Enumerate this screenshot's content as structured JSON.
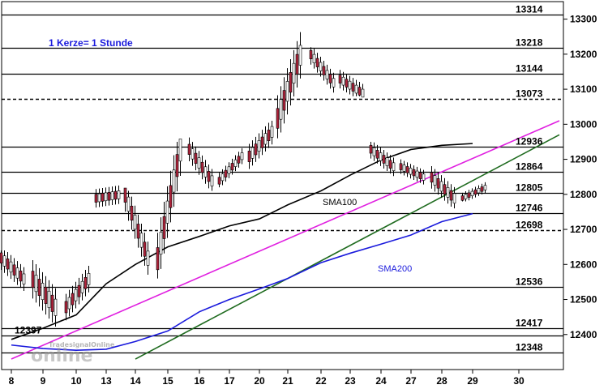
{
  "chart_data": {
    "type": "candlestick",
    "annotation": "1 Kerze= 1 Stunde",
    "x_ticks": [
      "8",
      "9",
      "10",
      "13",
      "14",
      "15",
      "16",
      "17",
      "20",
      "21",
      "22",
      "23",
      "24",
      "27",
      "28",
      "29",
      "30"
    ],
    "y_ticks": [
      12400,
      12500,
      12600,
      12700,
      12800,
      12900,
      13000,
      13100,
      13200,
      13300
    ],
    "ylim": [
      12300,
      13350
    ],
    "levels": [
      {
        "value": 13314,
        "label": "13314",
        "style": "solid"
      },
      {
        "value": 13218,
        "label": "13218",
        "style": "solid"
      },
      {
        "value": 13144,
        "label": "13144",
        "style": "solid"
      },
      {
        "value": 13073,
        "label": "13073",
        "style": "dashed"
      },
      {
        "value": 12936,
        "label": "12936",
        "style": "solid"
      },
      {
        "value": 12864,
        "label": "12864",
        "style": "solid"
      },
      {
        "value": 12805,
        "label": "12805",
        "style": "solid"
      },
      {
        "value": 12746,
        "label": "12746",
        "style": "solid"
      },
      {
        "value": 12698,
        "label": "12698",
        "style": "dashed"
      },
      {
        "value": 12536,
        "label": "12536",
        "style": "solid"
      },
      {
        "value": 12417,
        "label": "12417",
        "style": "solid"
      },
      {
        "value": 12397,
        "label": "12397",
        "style": "solid"
      },
      {
        "value": 12348,
        "label": "12348",
        "style": "solid"
      }
    ],
    "series": [
      {
        "name": "SMA100",
        "color": "#000000",
        "points": [
          [
            "8",
            12386
          ],
          [
            "9",
            12418
          ],
          [
            "10",
            12456
          ],
          [
            "13",
            12545
          ],
          [
            "14",
            12600
          ],
          [
            "15",
            12650
          ],
          [
            "16",
            12680
          ],
          [
            "17",
            12710
          ],
          [
            "20",
            12730
          ],
          [
            "21",
            12770
          ],
          [
            "22",
            12810
          ],
          [
            "23",
            12855
          ],
          [
            "24",
            12898
          ],
          [
            "27",
            12928
          ],
          [
            "28",
            12940
          ],
          [
            "29",
            12945
          ]
        ]
      },
      {
        "name": "SMA200",
        "color": "#1a1adc",
        "points": [
          [
            "8",
            12370
          ],
          [
            "9",
            12360
          ],
          [
            "10",
            12355
          ],
          [
            "13",
            12358
          ],
          [
            "14",
            12380
          ],
          [
            "15",
            12410
          ],
          [
            "16",
            12465
          ],
          [
            "17",
            12500
          ],
          [
            "20",
            12530
          ],
          [
            "21",
            12560
          ],
          [
            "22",
            12605
          ],
          [
            "23",
            12632
          ],
          [
            "24",
            12658
          ],
          [
            "27",
            12684
          ],
          [
            "28",
            12722
          ],
          [
            "29",
            12745
          ]
        ]
      }
    ],
    "trendlines": [
      {
        "color": "#e020e0",
        "from": [
          "8",
          12330
        ],
        "to": [
          "30",
          13010
        ]
      },
      {
        "color": "#1f6b1f",
        "from": [
          "14",
          12330
        ],
        "to": [
          "30",
          12970
        ]
      }
    ],
    "candles_by_day": [
      {
        "day": "8",
        "open": 12620,
        "high": 12640,
        "low": 12460,
        "close": 12560
      },
      {
        "day": "9",
        "open": 12560,
        "high": 12710,
        "low": 12420,
        "close": 12480
      },
      {
        "day": "10",
        "open": 12480,
        "high": 12640,
        "low": 12440,
        "close": 12560
      },
      {
        "day": "13",
        "open": 12790,
        "high": 12830,
        "low": 12690,
        "close": 12800
      },
      {
        "day": "14",
        "open": 12800,
        "high": 12810,
        "low": 12560,
        "close": 12620
      },
      {
        "day": "15",
        "open": 12620,
        "high": 12950,
        "low": 12560,
        "close": 12930
      },
      {
        "day": "16",
        "open": 12930,
        "high": 12990,
        "low": 12810,
        "close": 12840
      },
      {
        "day": "17",
        "open": 12840,
        "high": 12940,
        "low": 12820,
        "close": 12910
      },
      {
        "day": "20",
        "open": 12910,
        "high": 13010,
        "low": 12820,
        "close": 12980
      },
      {
        "day": "21",
        "open": 13020,
        "high": 13310,
        "low": 12960,
        "close": 13200
      },
      {
        "day": "22",
        "open": 13200,
        "high": 13220,
        "low": 13070,
        "close": 13120
      },
      {
        "day": "23",
        "open": 13130,
        "high": 13220,
        "low": 13080,
        "close": 13090
      },
      {
        "day": "24",
        "open": 12930,
        "high": 12950,
        "low": 12810,
        "close": 12880
      },
      {
        "day": "27",
        "open": 12880,
        "high": 12930,
        "low": 12820,
        "close": 12850
      },
      {
        "day": "28",
        "open": 12850,
        "high": 12930,
        "low": 12760,
        "close": 12790
      },
      {
        "day": "29",
        "open": 12790,
        "high": 12860,
        "low": 12780,
        "close": 12820
      }
    ]
  },
  "watermark": {
    "top": "TradesignalOnline",
    "main": "online"
  },
  "colors": {
    "bull": "#ffffff",
    "bear": "#b2243c",
    "grid": "#000000"
  }
}
